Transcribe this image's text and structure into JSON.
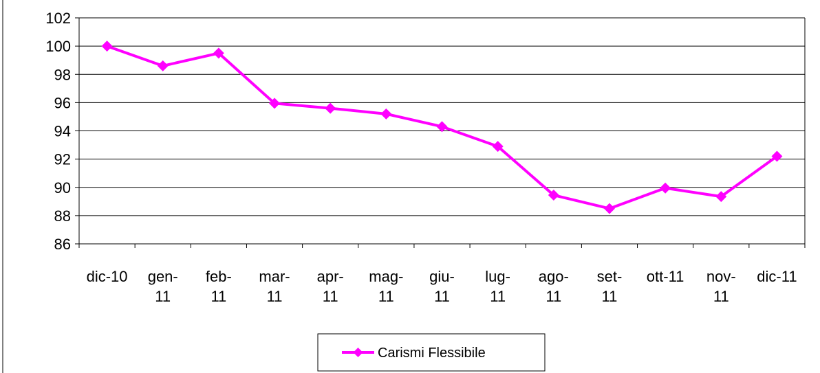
{
  "chart_data": {
    "type": "line",
    "title": "",
    "xlabel": "",
    "ylabel": "",
    "categories": [
      "dic-10",
      "gen-11",
      "feb-11",
      "mar-11",
      "apr-11",
      "mag-11",
      "giu-11",
      "lug-11",
      "ago-11",
      "set-11",
      "ott-11",
      "nov-11",
      "dic-11"
    ],
    "category_labels": [
      [
        "dic-10"
      ],
      [
        "gen-",
        "11"
      ],
      [
        "feb-",
        "11"
      ],
      [
        "mar-",
        "11"
      ],
      [
        "apr-",
        "11"
      ],
      [
        "mag-",
        "11"
      ],
      [
        "giu-",
        "11"
      ],
      [
        "lug-",
        "11"
      ],
      [
        "ago-",
        "11"
      ],
      [
        "set-",
        "11"
      ],
      [
        "ott-11"
      ],
      [
        "nov-",
        "11"
      ],
      [
        "dic-11"
      ]
    ],
    "series": [
      {
        "name": "Carismi Flessibile",
        "color": "#FF00FF",
        "marker": "diamond",
        "values": [
          100.0,
          98.6,
          99.5,
          95.95,
          95.6,
          95.2,
          94.3,
          92.9,
          89.45,
          88.5,
          89.95,
          89.35,
          92.2
        ]
      }
    ],
    "ylim": [
      86,
      102
    ],
    "yticks": [
      86,
      88,
      90,
      92,
      94,
      96,
      98,
      100,
      102
    ],
    "grid": true,
    "legend": "bottom-center"
  }
}
